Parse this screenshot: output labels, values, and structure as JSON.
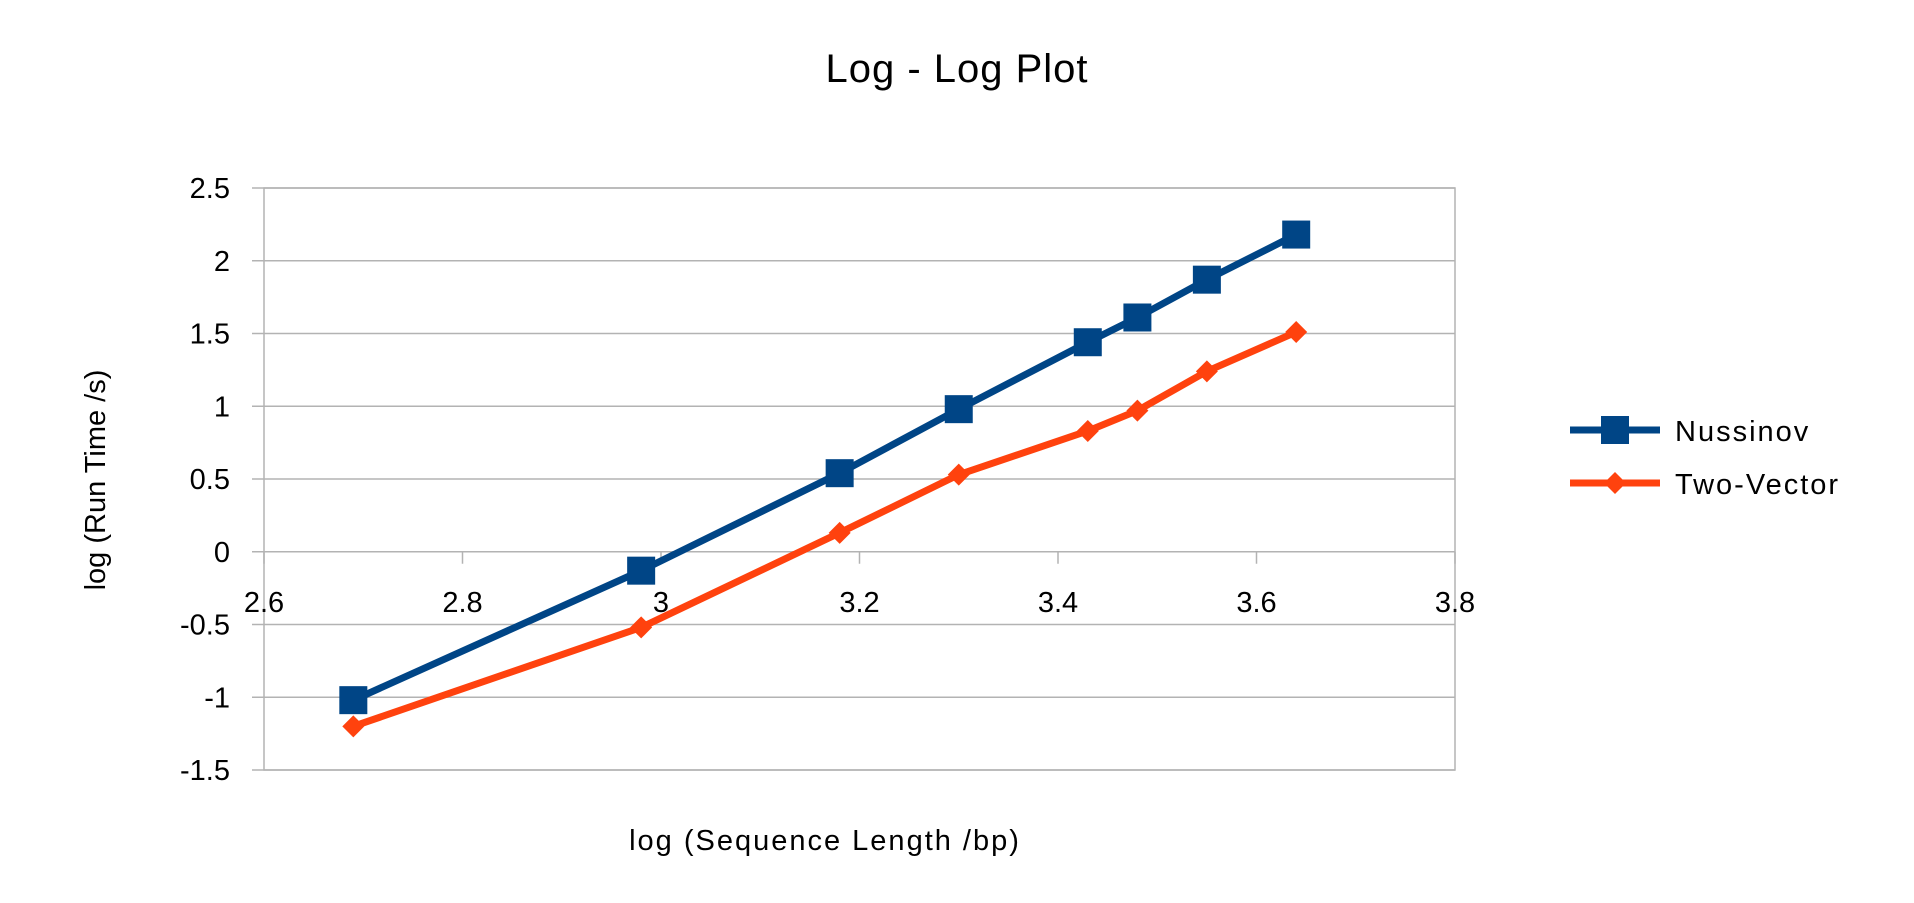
{
  "chart_data": {
    "type": "scatter",
    "title": "Log - Log Plot",
    "xlabel": "log (Sequence Length /bp)",
    "ylabel": "log (Run Time /s)",
    "xlim": [
      2.6,
      3.8
    ],
    "ylim": [
      -1.5,
      2.5
    ],
    "x_ticks": [
      "2.6",
      "2.8",
      "3",
      "3.2",
      "3.4",
      "3.6",
      "3.8"
    ],
    "y_ticks": [
      "2.5",
      "2",
      "1.5",
      "1",
      "0.5",
      "0",
      "-0.5",
      "-1",
      "-1.5"
    ],
    "grid": "horizontal",
    "legend_position": "right",
    "series": [
      {
        "name": "Nussinov",
        "color": "#004586",
        "marker": "square",
        "x": [
          2.69,
          2.98,
          3.18,
          3.3,
          3.43,
          3.48,
          3.55,
          3.64
        ],
        "y": [
          -1.02,
          -0.13,
          0.54,
          0.98,
          1.44,
          1.61,
          1.87,
          2.18
        ]
      },
      {
        "name": "Two-Vector",
        "color": "#ff420e",
        "marker": "diamond",
        "x": [
          2.69,
          2.98,
          3.18,
          3.3,
          3.43,
          3.48,
          3.55,
          3.64
        ],
        "y": [
          -1.2,
          -0.52,
          0.13,
          0.53,
          0.83,
          0.97,
          1.24,
          1.51
        ]
      }
    ]
  }
}
